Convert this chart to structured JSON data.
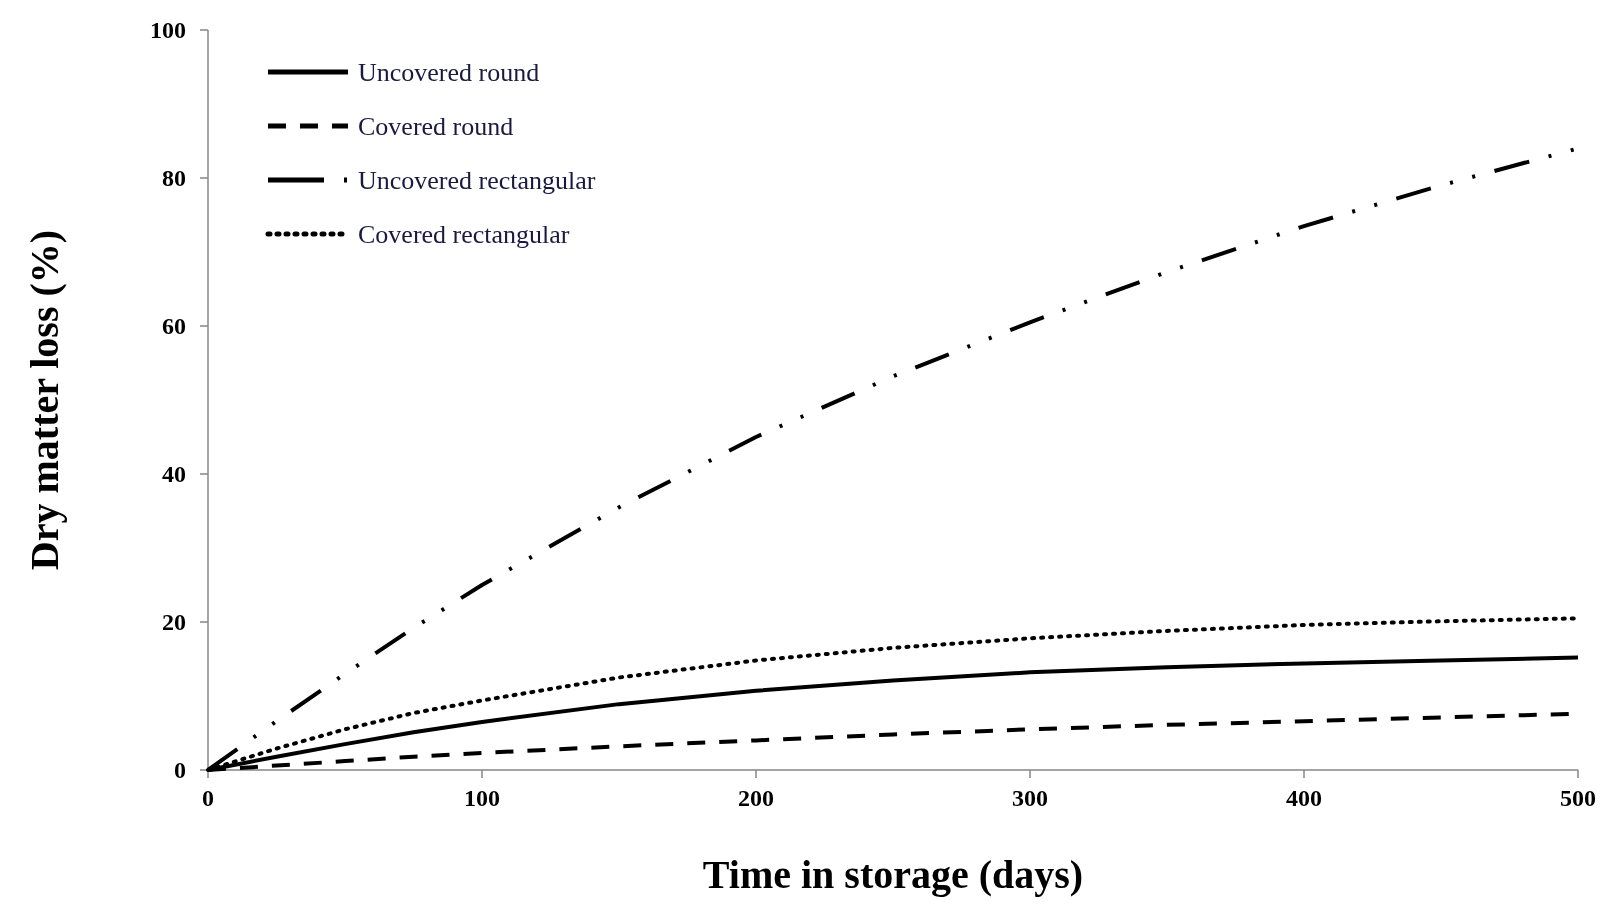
{
  "chart_data": {
    "type": "line",
    "xlabel": "Time in storage (days)",
    "ylabel": "Dry matter loss (%)",
    "xlim": [
      0,
      500
    ],
    "xticks": [
      0,
      100,
      200,
      300,
      400,
      500
    ],
    "ylim": [
      0,
      100
    ],
    "yticks": [
      0,
      20,
      40,
      60,
      80,
      100
    ],
    "grid": false,
    "legend": "top left",
    "marker": "none",
    "x": [
      0,
      25,
      50,
      75,
      100,
      150,
      200,
      250,
      300,
      350,
      400,
      450,
      500
    ],
    "series": [
      {
        "name": "Uncovered round",
        "color": "#000000",
        "line_style": "solid",
        "values": [
          0,
          1.8,
          3.5,
          5.1,
          6.5,
          8.9,
          10.7,
          12.1,
          13.2,
          13.9,
          14.4,
          14.8,
          15.2
        ]
      },
      {
        "name": "Covered round",
        "color": "#000000",
        "line_style": "dashed",
        "values": [
          0,
          0.6,
          1.2,
          1.8,
          2.3,
          3.2,
          4.0,
          4.8,
          5.5,
          6.1,
          6.6,
          7.1,
          7.6
        ]
      },
      {
        "name": "Uncovered rectangular",
        "color": "#000000",
        "line_style": "dashdot",
        "values": [
          0,
          6.6,
          13,
          19.2,
          25,
          35.5,
          45,
          53.2,
          60.5,
          67.3,
          73.5,
          79,
          84
        ]
      },
      {
        "name": "Covered rectangular",
        "color": "#000000",
        "line_style": "dotted",
        "values": [
          0,
          2.9,
          5.5,
          7.7,
          9.4,
          12.5,
          14.8,
          16.5,
          17.8,
          18.8,
          19.6,
          20.1,
          20.5
        ]
      }
    ]
  }
}
